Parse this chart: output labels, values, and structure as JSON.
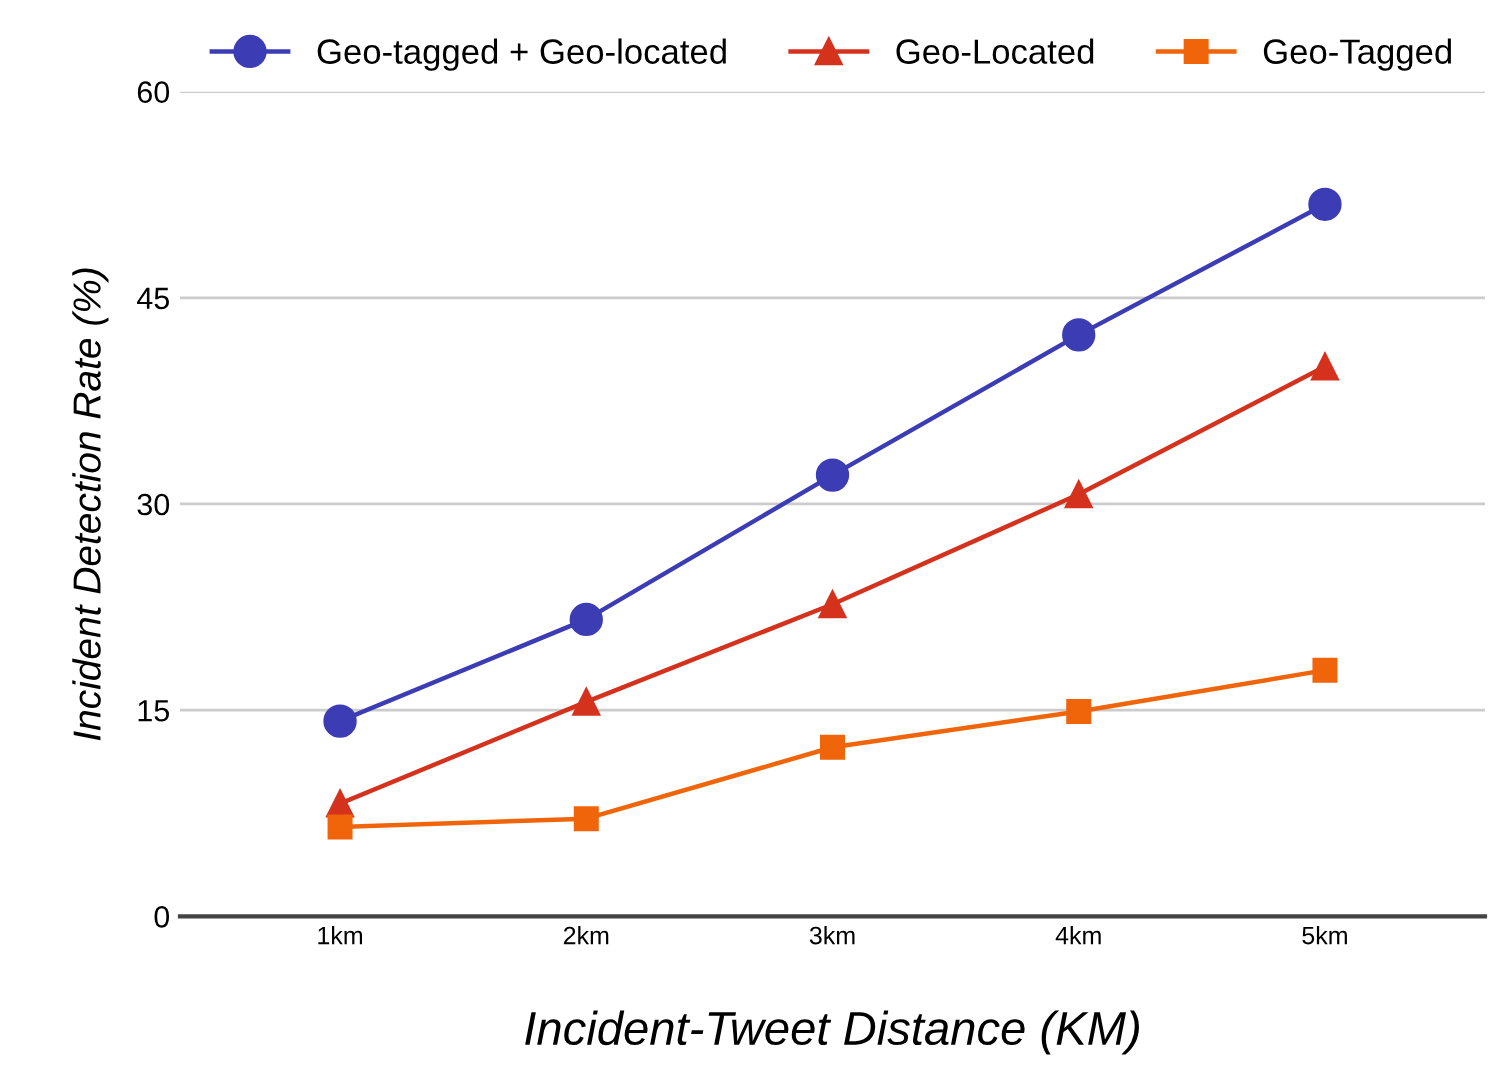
{
  "chart_data": {
    "type": "line",
    "xlabel": "Incident-Tweet Distance (KM)",
    "ylabel": "Incident Detection Rate (%)",
    "categories": [
      "1km",
      "2km",
      "3km",
      "4km",
      "5km"
    ],
    "series": [
      {
        "name": "Geo-tagged + Geo-located",
        "color": "#3c3cb4",
        "marker": "circle",
        "values": [
          14.2,
          21.6,
          32.1,
          42.3,
          51.8
        ]
      },
      {
        "name": "Geo-Located",
        "color": "#d5321e",
        "marker": "triangle",
        "values": [
          8.2,
          15.6,
          22.7,
          30.7,
          40.0
        ]
      },
      {
        "name": "Geo-Tagged",
        "color": "#f0640a",
        "marker": "square",
        "values": [
          6.5,
          7.1,
          12.3,
          14.9,
          17.9
        ]
      }
    ],
    "ylim": [
      0,
      60
    ],
    "yticks": [
      0,
      15,
      30,
      45,
      60
    ],
    "grid": "y",
    "legend": "top"
  }
}
